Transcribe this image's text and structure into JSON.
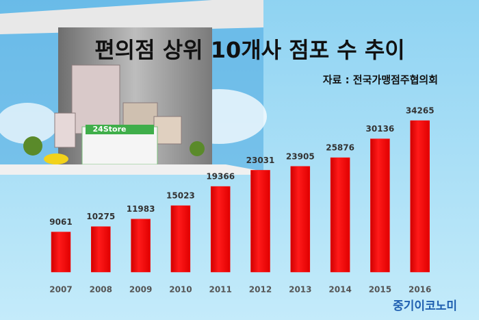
{
  "chart_data": {
    "type": "bar",
    "title": "편의점 상위 10개사 점포 수 추이",
    "subtitle": "자료 : 전국가맹점주협의회",
    "categories": [
      "2007",
      "2008",
      "2009",
      "2010",
      "2011",
      "2012",
      "2013",
      "2014",
      "2015",
      "2016"
    ],
    "values": [
      9061,
      10275,
      11983,
      15023,
      19366,
      23031,
      23905,
      25876,
      30136,
      34265
    ],
    "color": "#ff0000"
  },
  "watermark": "중기이코노미"
}
